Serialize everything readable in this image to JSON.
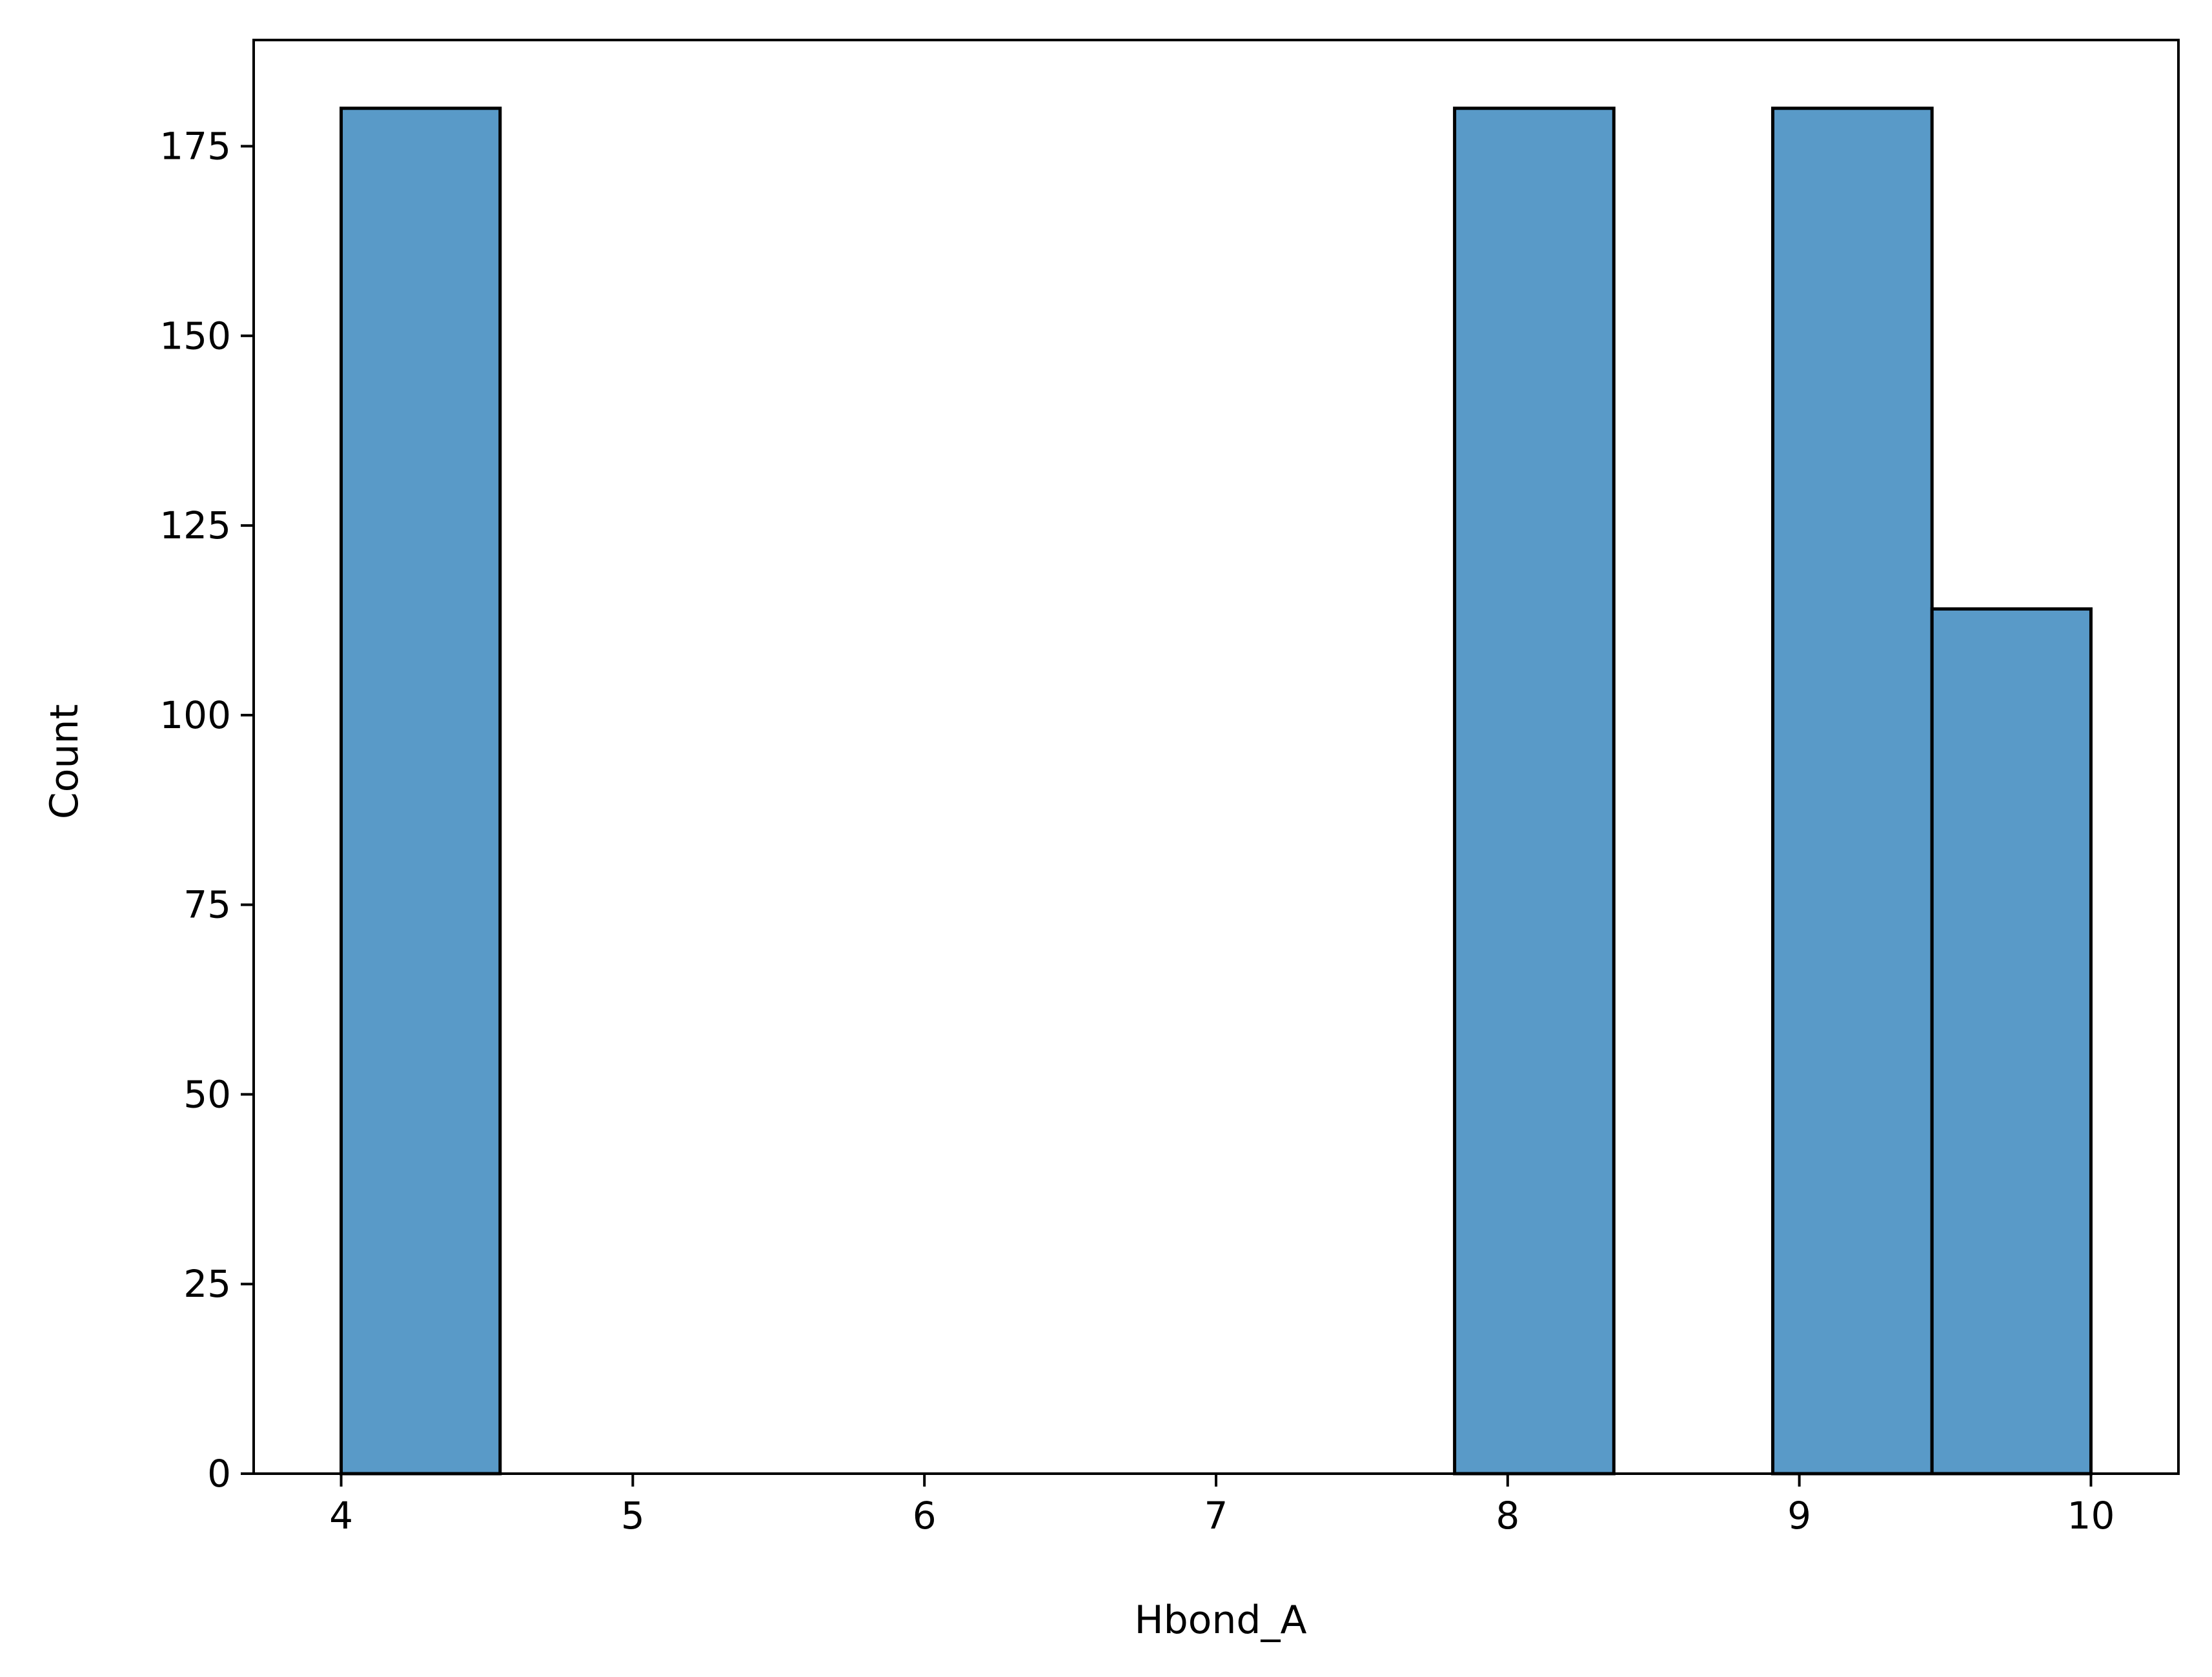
{
  "chart_data": {
    "type": "bar",
    "title": "",
    "xlabel": "Hbond_A",
    "ylabel": "Count",
    "xlim": [
      3.7,
      10.3
    ],
    "ylim": [
      0,
      189
    ],
    "xticks": [
      4,
      5,
      6,
      7,
      8,
      9,
      10
    ],
    "xtick_labels": [
      "4",
      "5",
      "6",
      "7",
      "8",
      "9",
      "10"
    ],
    "yticks": [
      0,
      25,
      50,
      75,
      100,
      125,
      150,
      175
    ],
    "ytick_labels": [
      "0",
      "25",
      "50",
      "75",
      "100",
      "125",
      "150",
      "175"
    ],
    "bins": [
      {
        "x0": 4.0,
        "x1": 4.545,
        "count": 180
      },
      {
        "x0": 4.545,
        "x1": 5.091,
        "count": 0
      },
      {
        "x0": 5.091,
        "x1": 5.636,
        "count": 0
      },
      {
        "x0": 5.636,
        "x1": 6.182,
        "count": 0
      },
      {
        "x0": 6.182,
        "x1": 6.727,
        "count": 0
      },
      {
        "x0": 6.727,
        "x1": 7.273,
        "count": 0
      },
      {
        "x0": 7.273,
        "x1": 7.818,
        "count": 0
      },
      {
        "x0": 7.818,
        "x1": 8.364,
        "count": 180
      },
      {
        "x0": 8.364,
        "x1": 8.909,
        "count": 0
      },
      {
        "x0": 8.909,
        "x1": 9.455,
        "count": 180
      },
      {
        "x0": 9.455,
        "x1": 10.0,
        "count": 114
      }
    ],
    "grid": false,
    "colors": {
      "bar_fill": "#599ac8",
      "bar_edge": "#000000",
      "axes": "#000000",
      "background": "#ffffff"
    }
  }
}
